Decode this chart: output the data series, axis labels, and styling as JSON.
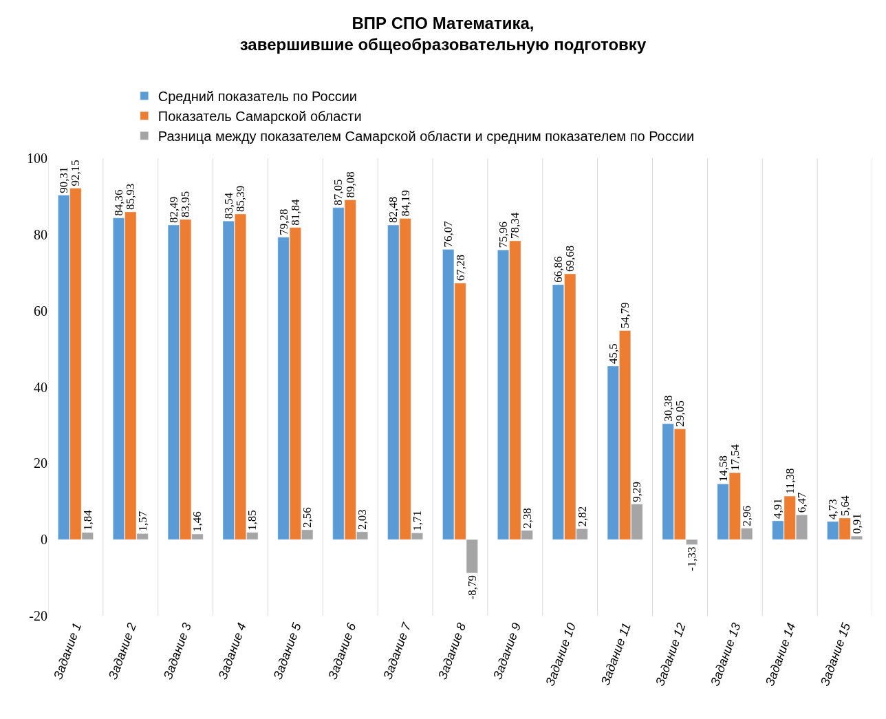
{
  "chart_data": {
    "type": "bar",
    "title": "ВПР СПО Математика,\nзавершившие общеобразовательную подготовку",
    "categories": [
      "Задание 1",
      "Задание 2",
      "Задание 3",
      "Задание 4",
      "Задание 5",
      "Задание 6",
      "Задание 7",
      "Задание 8",
      "Задание 9",
      "Задание 10",
      "Задание 11",
      "Задание 12",
      "Задание 13",
      "Задание 14",
      "Задание 15"
    ],
    "series": [
      {
        "name": "Средний показатель по России",
        "color": "#5b9bd5",
        "values": [
          90.31,
          84.36,
          82.49,
          83.54,
          79.28,
          87.05,
          82.48,
          76.07,
          75.96,
          66.86,
          45.5,
          30.38,
          14.58,
          4.91,
          4.73
        ],
        "value_labels": [
          "90,31",
          "84,36",
          "82,49",
          "83,54",
          "79,28",
          "87,05",
          "82,48",
          "76,07",
          "75,96",
          "66,86",
          "45,5",
          "30,38",
          "14,58",
          "4,91",
          "4,73"
        ]
      },
      {
        "name": "Показатель Самарской области",
        "color": "#ed7d31",
        "values": [
          92.15,
          85.93,
          83.95,
          85.39,
          81.84,
          89.08,
          84.19,
          67.28,
          78.34,
          69.68,
          54.79,
          29.05,
          17.54,
          11.38,
          5.64
        ],
        "value_labels": [
          "92,15",
          "85,93",
          "83,95",
          "85,39",
          "81,84",
          "89,08",
          "84,19",
          "67,28",
          "78,34",
          "69,68",
          "54,79",
          "29,05",
          "17,54",
          "11,38",
          "5,64"
        ]
      },
      {
        "name": "Разница между показателем Самарской области и средним показателем по России",
        "color": "#a5a5a5",
        "values": [
          1.84,
          1.57,
          1.46,
          1.85,
          2.56,
          2.03,
          1.71,
          -8.79,
          2.38,
          2.82,
          9.29,
          -1.33,
          2.96,
          6.47,
          0.91
        ],
        "value_labels": [
          "1,84",
          "1,57",
          "1,46",
          "1,85",
          "2,56",
          "2,03",
          "1,71",
          "-8,79",
          "2,38",
          "2,82",
          "9,29",
          "-1,33",
          "2,96",
          "6,47",
          "0,91"
        ]
      }
    ],
    "ylim": [
      -20,
      100
    ],
    "yticks": [
      -20,
      0,
      20,
      40,
      60,
      80,
      100
    ],
    "grid": "x",
    "legend": "top left"
  }
}
